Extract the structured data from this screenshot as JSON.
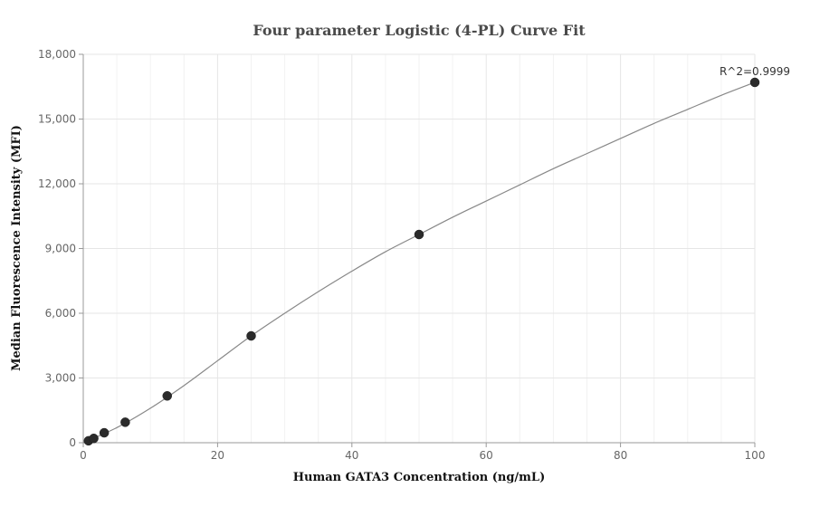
{
  "chart_data": {
    "type": "scatter",
    "title": "Four parameter Logistic (4-PL) Curve Fit",
    "xlabel": "Human GATA3 Concentration (ng/mL)",
    "ylabel": "Median Fluorescence Intensity (MFI)",
    "xlim": [
      0,
      100
    ],
    "ylim": [
      0,
      18000
    ],
    "xticks": [
      0,
      20,
      40,
      60,
      80,
      100
    ],
    "xtick_labels": [
      "0",
      "20",
      "40",
      "60",
      "80",
      "100"
    ],
    "yticks": [
      0,
      3000,
      6000,
      9000,
      12000,
      15000,
      18000
    ],
    "ytick_labels": [
      "0",
      "3,000",
      "6,000",
      "9,000",
      "12,000",
      "15,000",
      "18,000"
    ],
    "grid": true,
    "points": {
      "x": [
        0.78,
        1.56,
        3.12,
        6.25,
        12.5,
        25,
        50,
        100
      ],
      "y": [
        90,
        200,
        460,
        950,
        2170,
        4950,
        9650,
        16700
      ]
    },
    "fit_curve": {
      "x": [
        0,
        5,
        10,
        15,
        20,
        25,
        30,
        35,
        40,
        45,
        50,
        55,
        60,
        65,
        70,
        75,
        80,
        85,
        90,
        95,
        100
      ],
      "y": [
        0,
        700,
        1600,
        2650,
        3800,
        4950,
        6000,
        7000,
        7950,
        8850,
        9650,
        10450,
        11200,
        11950,
        12700,
        13400,
        14100,
        14800,
        15450,
        16100,
        16700
      ]
    },
    "annotation": "R^2=0.9999",
    "colors": {
      "point": "#2b2b2b",
      "curve": "#888888",
      "grid": "#e6e6e6",
      "axis": "#999999"
    }
  }
}
